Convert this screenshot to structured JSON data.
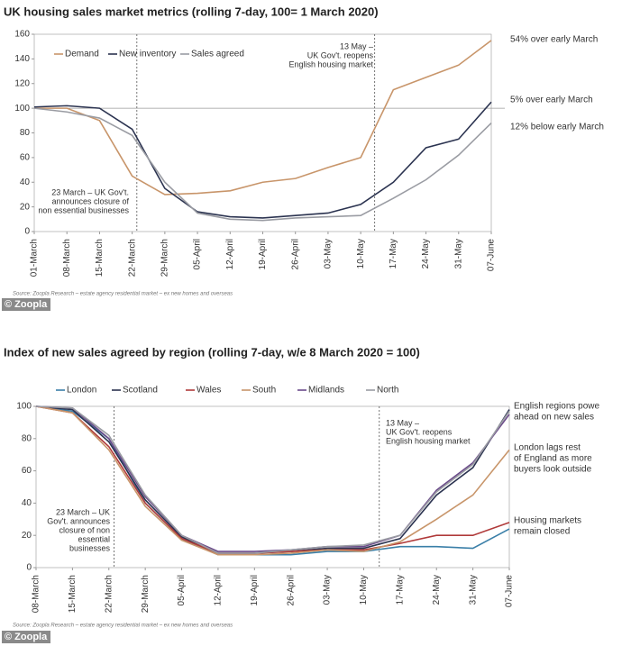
{
  "chart_data": [
    {
      "type": "line",
      "title": "UK housing sales market metrics (rolling 7-day, 100= 1 March 2020)",
      "categories": [
        "01-March",
        "08-March",
        "15-March",
        "22-March",
        "29-March",
        "05-April",
        "12-April",
        "19-April",
        "26-April",
        "03-May",
        "10-May",
        "17-May",
        "24-May",
        "31-May",
        "07-June"
      ],
      "series": [
        {
          "name": "Demand",
          "color": "#c8956a",
          "values": [
            100,
            100,
            90,
            45,
            30,
            31,
            33,
            40,
            43,
            52,
            60,
            115,
            125,
            135,
            155
          ]
        },
        {
          "name": "New inventory",
          "color": "#2b3350",
          "values": [
            101,
            102,
            100,
            83,
            35,
            16,
            12,
            11,
            13,
            15,
            22,
            40,
            68,
            75,
            105
          ]
        },
        {
          "name": "Sales agreed",
          "color": "#9a9ca3",
          "values": [
            100,
            97,
            92,
            78,
            40,
            15,
            10,
            9,
            11,
            12,
            13,
            27,
            42,
            62,
            88
          ]
        }
      ],
      "ylim": [
        0,
        160
      ],
      "yticks": [
        0,
        20,
        40,
        60,
        80,
        100,
        120,
        140,
        160
      ],
      "reference_line": 100,
      "annotations": [
        [
          "13 May –",
          "UK Gov't. reopens",
          "English housing market"
        ],
        [
          "23 March – UK Gov't.",
          "announces closure of",
          "non essential businesses"
        ]
      ],
      "side_notes": [
        [
          "54% over early March"
        ],
        [
          "5% over early March"
        ],
        [
          "12% below early March"
        ]
      ],
      "source": "Source: Zoopla Research – estate agency residential market – ex new homes and overseas",
      "logo": "© Zoopla"
    },
    {
      "type": "line",
      "title": "Index of new sales agreed by region (rolling 7-day, w/e 8 March 2020 = 100)",
      "categories": [
        "08-March",
        "15-March",
        "22-March",
        "29-March",
        "05-April",
        "12-April",
        "19-April",
        "26-April",
        "03-May",
        "10-May",
        "17-May",
        "24-May",
        "31-May",
        "07-June"
      ],
      "series": [
        {
          "name": "London",
          "color": "#3a7fa8",
          "values": [
            100,
            97,
            80,
            40,
            18,
            8,
            8,
            8,
            10,
            10,
            13,
            13,
            12,
            24
          ]
        },
        {
          "name": "Scotland",
          "color": "#2b3350",
          "values": [
            100,
            98,
            78,
            42,
            19,
            9,
            9,
            10,
            12,
            12,
            18,
            45,
            62,
            98
          ]
        },
        {
          "name": "Wales",
          "color": "#b03a3a",
          "values": [
            100,
            96,
            75,
            40,
            18,
            9,
            9,
            10,
            11,
            11,
            15,
            20,
            20,
            28
          ]
        },
        {
          "name": "South",
          "color": "#c8956a",
          "values": [
            100,
            96,
            73,
            38,
            17,
            8,
            8,
            9,
            11,
            10,
            16,
            30,
            45,
            73
          ]
        },
        {
          "name": "Midlands",
          "color": "#6b4a8a",
          "values": [
            100,
            99,
            80,
            44,
            20,
            10,
            10,
            11,
            13,
            13,
            20,
            48,
            65,
            95
          ]
        },
        {
          "name": "North",
          "color": "#9a9ca3",
          "values": [
            100,
            99,
            82,
            45,
            20,
            9,
            9,
            11,
            13,
            14,
            20,
            47,
            64,
            97
          ]
        }
      ],
      "ylim": [
        0,
        100
      ],
      "yticks": [
        0,
        20,
        40,
        60,
        80,
        100
      ],
      "annotations": [
        [
          "13 May –",
          "UK Gov't. reopens",
          "English housing market"
        ],
        [
          "23 March – UK",
          "Gov't. announces",
          "closure of non",
          "essential",
          "businesses"
        ]
      ],
      "side_notes": [
        [
          "English regions powe",
          "ahead on new sales"
        ],
        [
          "London lags rest",
          "of England as more",
          "buyers look outside"
        ],
        [
          "Housing markets",
          "remain closed"
        ]
      ],
      "source": "Source: Zoopla Research – estate agency residential market – ex new homes and overseas",
      "logo": "© Zoopla"
    }
  ]
}
